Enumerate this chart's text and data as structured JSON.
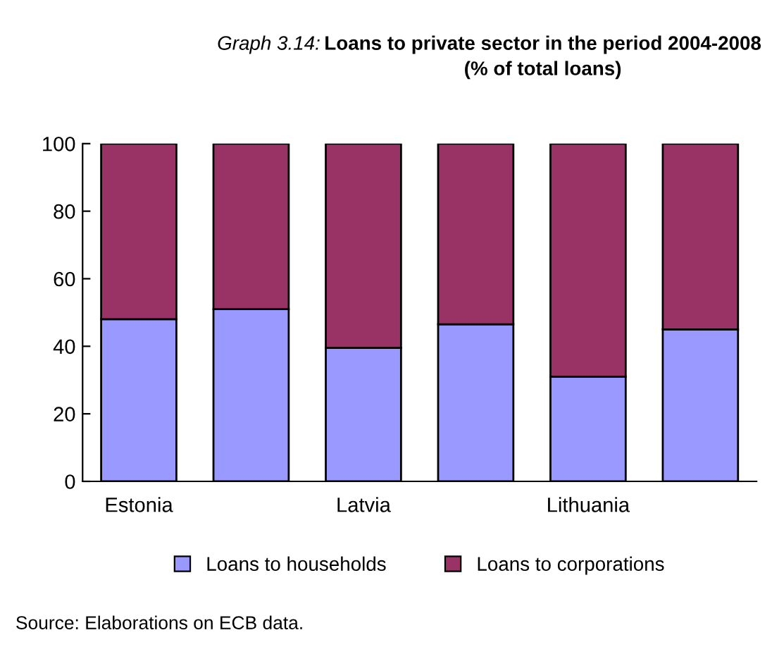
{
  "chart_data": {
    "type": "bar",
    "stacked": true,
    "title": "Loans to private sector in the period 2004-2008 (% of total loans)",
    "categories": [
      "Estonia",
      null,
      "Latvia",
      null,
      "Lithuania",
      null
    ],
    "series": [
      {
        "name": "Loans to households",
        "color": "#9999ff",
        "values": [
          48,
          51,
          39.5,
          46.5,
          31,
          45
        ]
      },
      {
        "name": "Loans to corporations",
        "color": "#993366",
        "values": [
          52,
          49,
          60.5,
          53.5,
          69,
          55
        ]
      }
    ],
    "ylim": [
      0,
      100
    ],
    "yticks": [
      0,
      20,
      40,
      60,
      80,
      100
    ],
    "grid": false,
    "legend": "bottom",
    "annotations": [
      "Graph 3.14:",
      "Source: Elaborations on ECB data."
    ]
  }
}
